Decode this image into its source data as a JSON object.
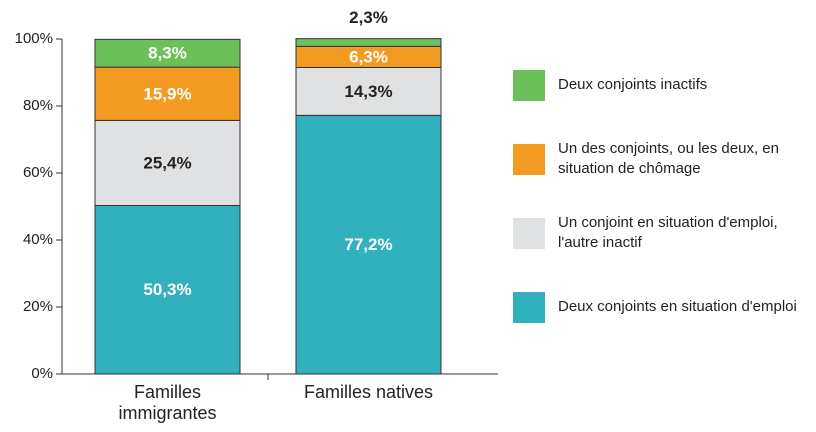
{
  "chart_data": {
    "type": "stacked_bar",
    "categories": [
      "Familles immigrantes",
      "Familles natives"
    ],
    "series": [
      {
        "name": "Deux conjoints en situation d'emploi",
        "color": "#31b0be",
        "values": [
          50.3,
          77.2
        ],
        "value_labels": [
          "50,3%",
          "77,2%"
        ]
      },
      {
        "name": "Un conjoint en situation d'emploi, l'autre inactif",
        "color": "#e0e1e3",
        "values": [
          25.4,
          14.3
        ],
        "value_labels": [
          "25,4%",
          "14,3%"
        ]
      },
      {
        "name": "Un des conjoints, ou les deux, en situation de chômage",
        "color": "#f29a21",
        "values": [
          15.9,
          6.3
        ],
        "value_labels": [
          "15,9%",
          "6,3%"
        ]
      },
      {
        "name": "Deux conjoints inactifs",
        "color": "#6cc05a",
        "values": [
          8.3,
          2.3
        ],
        "value_labels": [
          "8,3%",
          "2,3%"
        ]
      }
    ],
    "ylim": [
      0,
      100
    ],
    "yticks": [
      {
        "value": 0,
        "label": "0%"
      },
      {
        "value": 20,
        "label": "20%"
      },
      {
        "value": 40,
        "label": "40%"
      },
      {
        "value": 60,
        "label": "60%"
      },
      {
        "value": 80,
        "label": "80%"
      },
      {
        "value": 100,
        "label": "100%"
      }
    ]
  }
}
